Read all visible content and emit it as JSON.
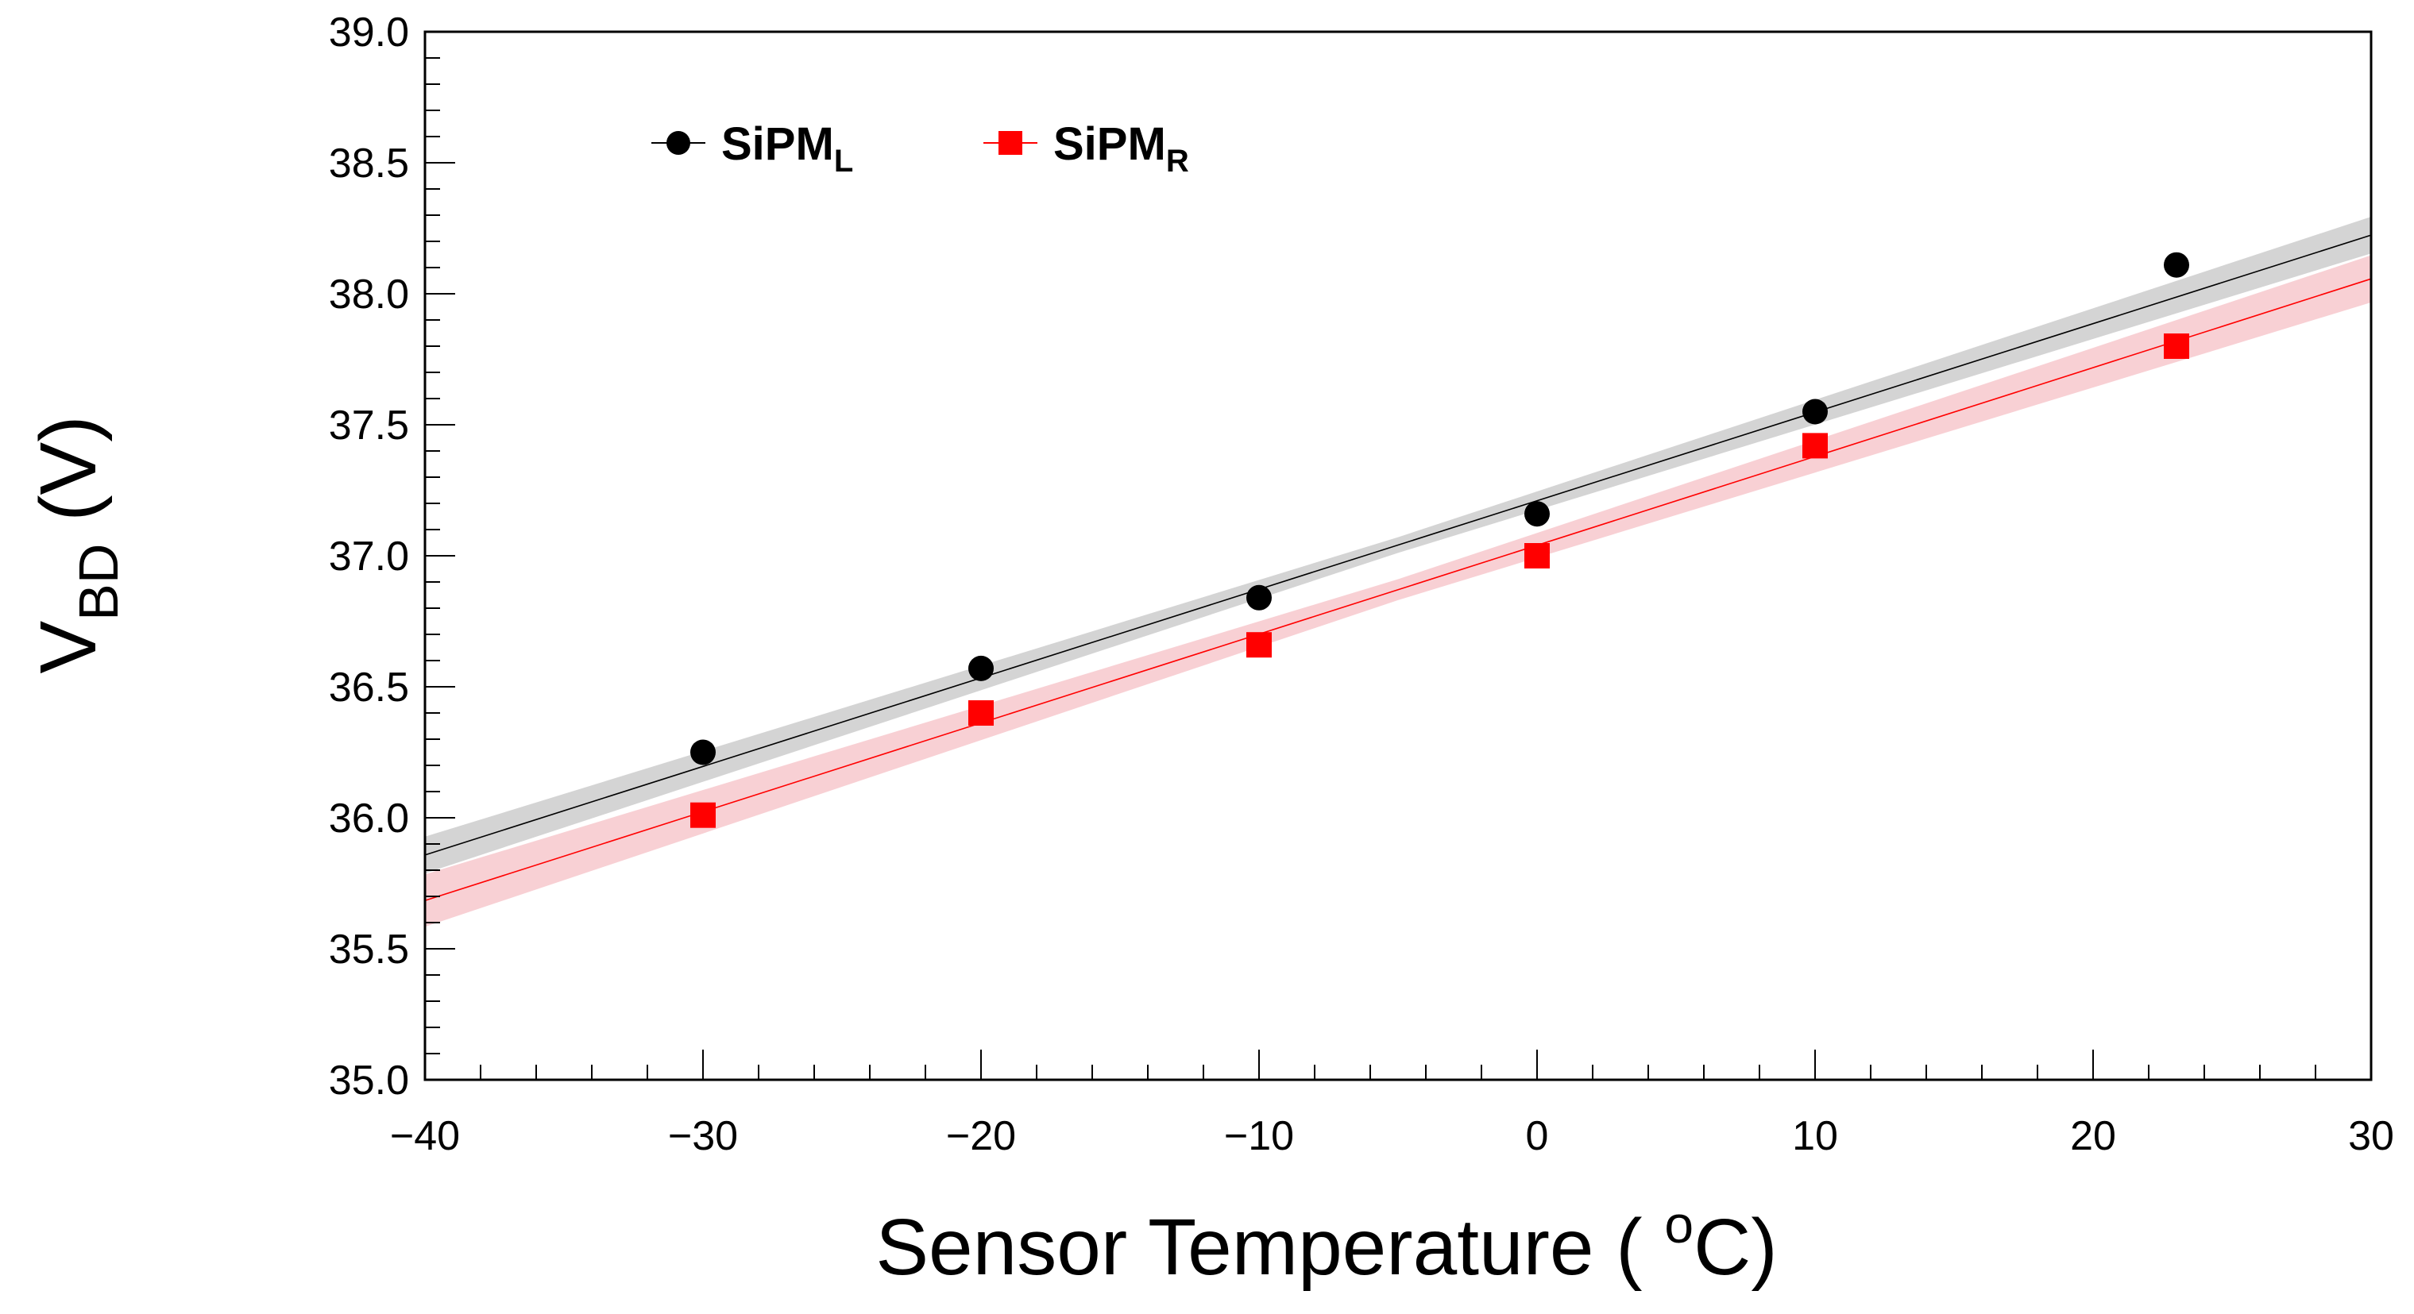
{
  "chart_data": {
    "type": "scatter",
    "title": "",
    "xlabel": "Sensor Temperature ( °C)",
    "xlabel_main": "Sensor Temperature ( ",
    "xlabel_sup": "o",
    "xlabel_end": "C)",
    "ylabel": "V_BD (V)",
    "ylabel_main": "V",
    "ylabel_sub": "BD",
    "ylabel_end": " (V)",
    "xlim": [
      -40,
      30
    ],
    "ylim": [
      35.0,
      39.0
    ],
    "xticks": [
      -40,
      -30,
      -20,
      -10,
      0,
      10,
      20,
      30
    ],
    "xtick_labels": [
      "−40",
      "−30",
      "−20",
      "−10",
      "0",
      "10",
      "20",
      "30"
    ],
    "yticks": [
      35.0,
      35.5,
      36.0,
      36.5,
      37.0,
      37.5,
      38.0,
      38.5,
      39.0
    ],
    "ytick_labels": [
      "35.0",
      "35.5",
      "36.0",
      "36.5",
      "37.0",
      "37.5",
      "38.0",
      "38.5",
      "39.0"
    ],
    "x_minor_step": 2,
    "y_minor_step": 0.1,
    "grid": false,
    "legend_position": "top-left",
    "series": [
      {
        "name": "SiPM_L",
        "label_main": "SiPM",
        "label_sub": "L",
        "color": "#000000",
        "band_color": "#cccccc",
        "marker": "circle",
        "x": [
          -30,
          -20,
          -10,
          0,
          10,
          23
        ],
        "y": [
          36.25,
          36.57,
          36.84,
          37.16,
          37.55,
          38.11
        ],
        "fit": {
          "slope": 0.0338,
          "intercept": 37.21,
          "band_halfwidth": [
            0.07,
            0.03,
            0.07
          ]
        }
      },
      {
        "name": "SiPM_R",
        "label_main": "SiPM",
        "label_sub": "R",
        "color": "#ff0000",
        "band_color": "#f7c8cc",
        "marker": "square",
        "x": [
          -30,
          -20,
          -10,
          0,
          10,
          23
        ],
        "y": [
          36.01,
          36.4,
          36.66,
          37.0,
          37.42,
          37.8
        ],
        "fit": {
          "slope": 0.0339,
          "intercept": 37.04,
          "band_halfwidth": [
            0.1,
            0.04,
            0.09
          ]
        }
      }
    ]
  }
}
